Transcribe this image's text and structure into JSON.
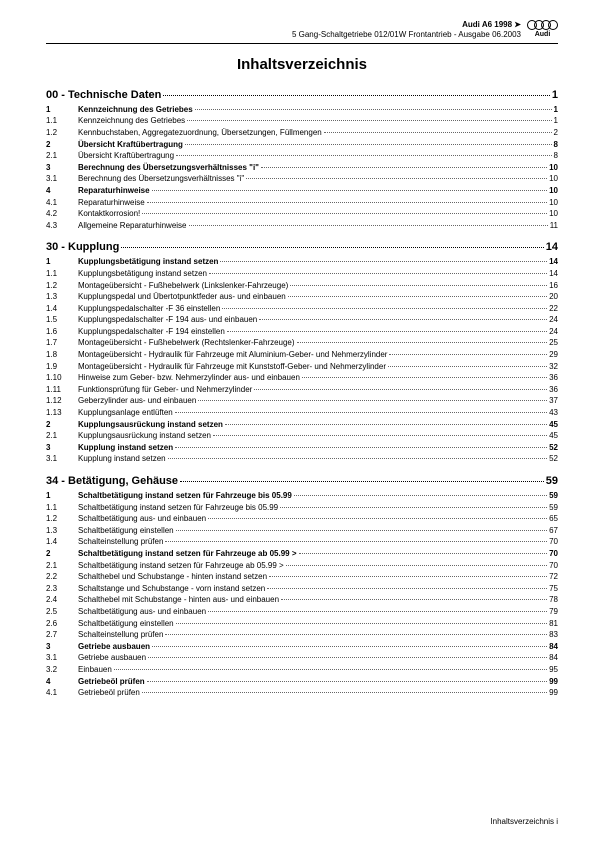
{
  "header": {
    "line1": "Audi A6 1998 ➤",
    "line2": "5 Gang-Schaltgetriebe 012/01W Frontantrieb - Ausgabe 06.2003",
    "logo_text": "Audi"
  },
  "title": "Inhaltsverzeichnis",
  "sections": [
    {
      "heading": "00 - Technische Daten",
      "page": "1",
      "rows": [
        {
          "n": "1",
          "t": "Kennzeichnung des Getriebes",
          "p": "1",
          "b": true
        },
        {
          "n": "1.1",
          "t": "Kennzeichnung des Getriebes",
          "p": "1"
        },
        {
          "n": "1.2",
          "t": "Kennbuchstaben, Aggregatezuordnung, Übersetzungen, Füllmengen",
          "p": "2"
        },
        {
          "n": "2",
          "t": "Übersicht Kraftübertragung",
          "p": "8",
          "b": true
        },
        {
          "n": "2.1",
          "t": "Übersicht Kraftübertragung",
          "p": "8"
        },
        {
          "n": "3",
          "t": "Berechnung des Übersetzungsverhältnisses \"i\"",
          "p": "10",
          "b": true
        },
        {
          "n": "3.1",
          "t": "Berechnung des Übersetzungsverhältnisses \"i\"",
          "p": "10"
        },
        {
          "n": "4",
          "t": "Reparaturhinweise",
          "p": "10",
          "b": true
        },
        {
          "n": "4.1",
          "t": "Reparaturhinweise",
          "p": "10"
        },
        {
          "n": "4.2",
          "t": "Kontaktkorrosion!",
          "p": "10"
        },
        {
          "n": "4.3",
          "t": "Allgemeine Reparaturhinweise",
          "p": "11"
        }
      ]
    },
    {
      "heading": "30 - Kupplung",
      "page": "14",
      "rows": [
        {
          "n": "1",
          "t": "Kupplungsbetätigung instand setzen",
          "p": "14",
          "b": true
        },
        {
          "n": "1.1",
          "t": "Kupplungsbetätigung instand setzen",
          "p": "14"
        },
        {
          "n": "1.2",
          "t": "Montageübersicht - Fußhebelwerk (Linkslenker-Fahrzeuge)",
          "p": "16"
        },
        {
          "n": "1.3",
          "t": "Kupplungspedal und Übertotpunktfeder aus- und einbauen",
          "p": "20"
        },
        {
          "n": "1.4",
          "t": "Kupplungspedalschalter -F 36 einstellen",
          "p": "22"
        },
        {
          "n": "1.5",
          "t": "Kupplungspedalschalter -F 194 aus- und einbauen",
          "p": "24"
        },
        {
          "n": "1.6",
          "t": "Kupplungspedalschalter -F 194 einstellen",
          "p": "24"
        },
        {
          "n": "1.7",
          "t": "Montageübersicht - Fußhebelwerk (Rechtslenker-Fahrzeuge)",
          "p": "25"
        },
        {
          "n": "1.8",
          "t": "Montageübersicht - Hydraulik für Fahrzeuge mit Aluminium-Geber- und Nehmerzylinder",
          "p": "29"
        },
        {
          "n": "1.9",
          "t": "Montageübersicht - Hydraulik für Fahrzeuge mit Kunststoff-Geber- und Nehmerzylinder",
          "p": "32"
        },
        {
          "n": "1.10",
          "t": "Hinweise zum Geber- bzw. Nehmerzylinder aus- und einbauen",
          "p": "36"
        },
        {
          "n": "1.11",
          "t": "Funktionsprüfung für Geber- und Nehmerzylinder",
          "p": "36"
        },
        {
          "n": "1.12",
          "t": "Geberzylinder aus- und einbauen",
          "p": "37"
        },
        {
          "n": "1.13",
          "t": "Kupplungsanlage entlüften",
          "p": "43"
        },
        {
          "n": "2",
          "t": "Kupplungsausrückung instand setzen",
          "p": "45",
          "b": true
        },
        {
          "n": "2.1",
          "t": "Kupplungsausrückung instand setzen",
          "p": "45"
        },
        {
          "n": "3",
          "t": "Kupplung instand setzen",
          "p": "52",
          "b": true
        },
        {
          "n": "3.1",
          "t": "Kupplung instand setzen",
          "p": "52"
        }
      ]
    },
    {
      "heading": "34 - Betätigung, Gehäuse",
      "page": "59",
      "rows": [
        {
          "n": "1",
          "t": "Schaltbetätigung instand setzen für Fahrzeuge bis 05.99",
          "p": "59",
          "b": true
        },
        {
          "n": "1.1",
          "t": "Schaltbetätigung instand setzen für Fahrzeuge bis 05.99",
          "p": "59"
        },
        {
          "n": "1.2",
          "t": "Schaltbetätigung aus- und einbauen",
          "p": "65"
        },
        {
          "n": "1.3",
          "t": "Schaltbetätigung einstellen",
          "p": "67"
        },
        {
          "n": "1.4",
          "t": "Schalteinstellung prüfen",
          "p": "70"
        },
        {
          "n": "2",
          "t": "Schaltbetätigung instand setzen für Fahrzeuge ab 05.99 >",
          "p": "70",
          "b": true
        },
        {
          "n": "2.1",
          "t": "Schaltbetätigung instand setzen für Fahrzeuge ab 05.99 >",
          "p": "70"
        },
        {
          "n": "2.2",
          "t": "Schalthebel und Schubstange - hinten instand setzen",
          "p": "72"
        },
        {
          "n": "2.3",
          "t": "Schaltstange und Schubstange - vorn instand setzen",
          "p": "75"
        },
        {
          "n": "2.4",
          "t": "Schalthebel mit Schubstange - hinten aus- und einbauen",
          "p": "78"
        },
        {
          "n": "2.5",
          "t": "Schaltbetätigung aus- und einbauen",
          "p": "79"
        },
        {
          "n": "2.6",
          "t": "Schaltbetätigung einstellen",
          "p": "81"
        },
        {
          "n": "2.7",
          "t": "Schalteinstellung prüfen",
          "p": "83"
        },
        {
          "n": "3",
          "t": "Getriebe ausbauen",
          "p": "84",
          "b": true
        },
        {
          "n": "3.1",
          "t": "Getriebe ausbauen",
          "p": "84"
        },
        {
          "n": "3.2",
          "t": "Einbauen",
          "p": "95"
        },
        {
          "n": "4",
          "t": "Getriebeöl prüfen",
          "p": "99",
          "b": true
        },
        {
          "n": "4.1",
          "t": "Getriebeöl prüfen",
          "p": "99"
        }
      ]
    }
  ],
  "footer": "Inhaltsverzeichnis   i"
}
